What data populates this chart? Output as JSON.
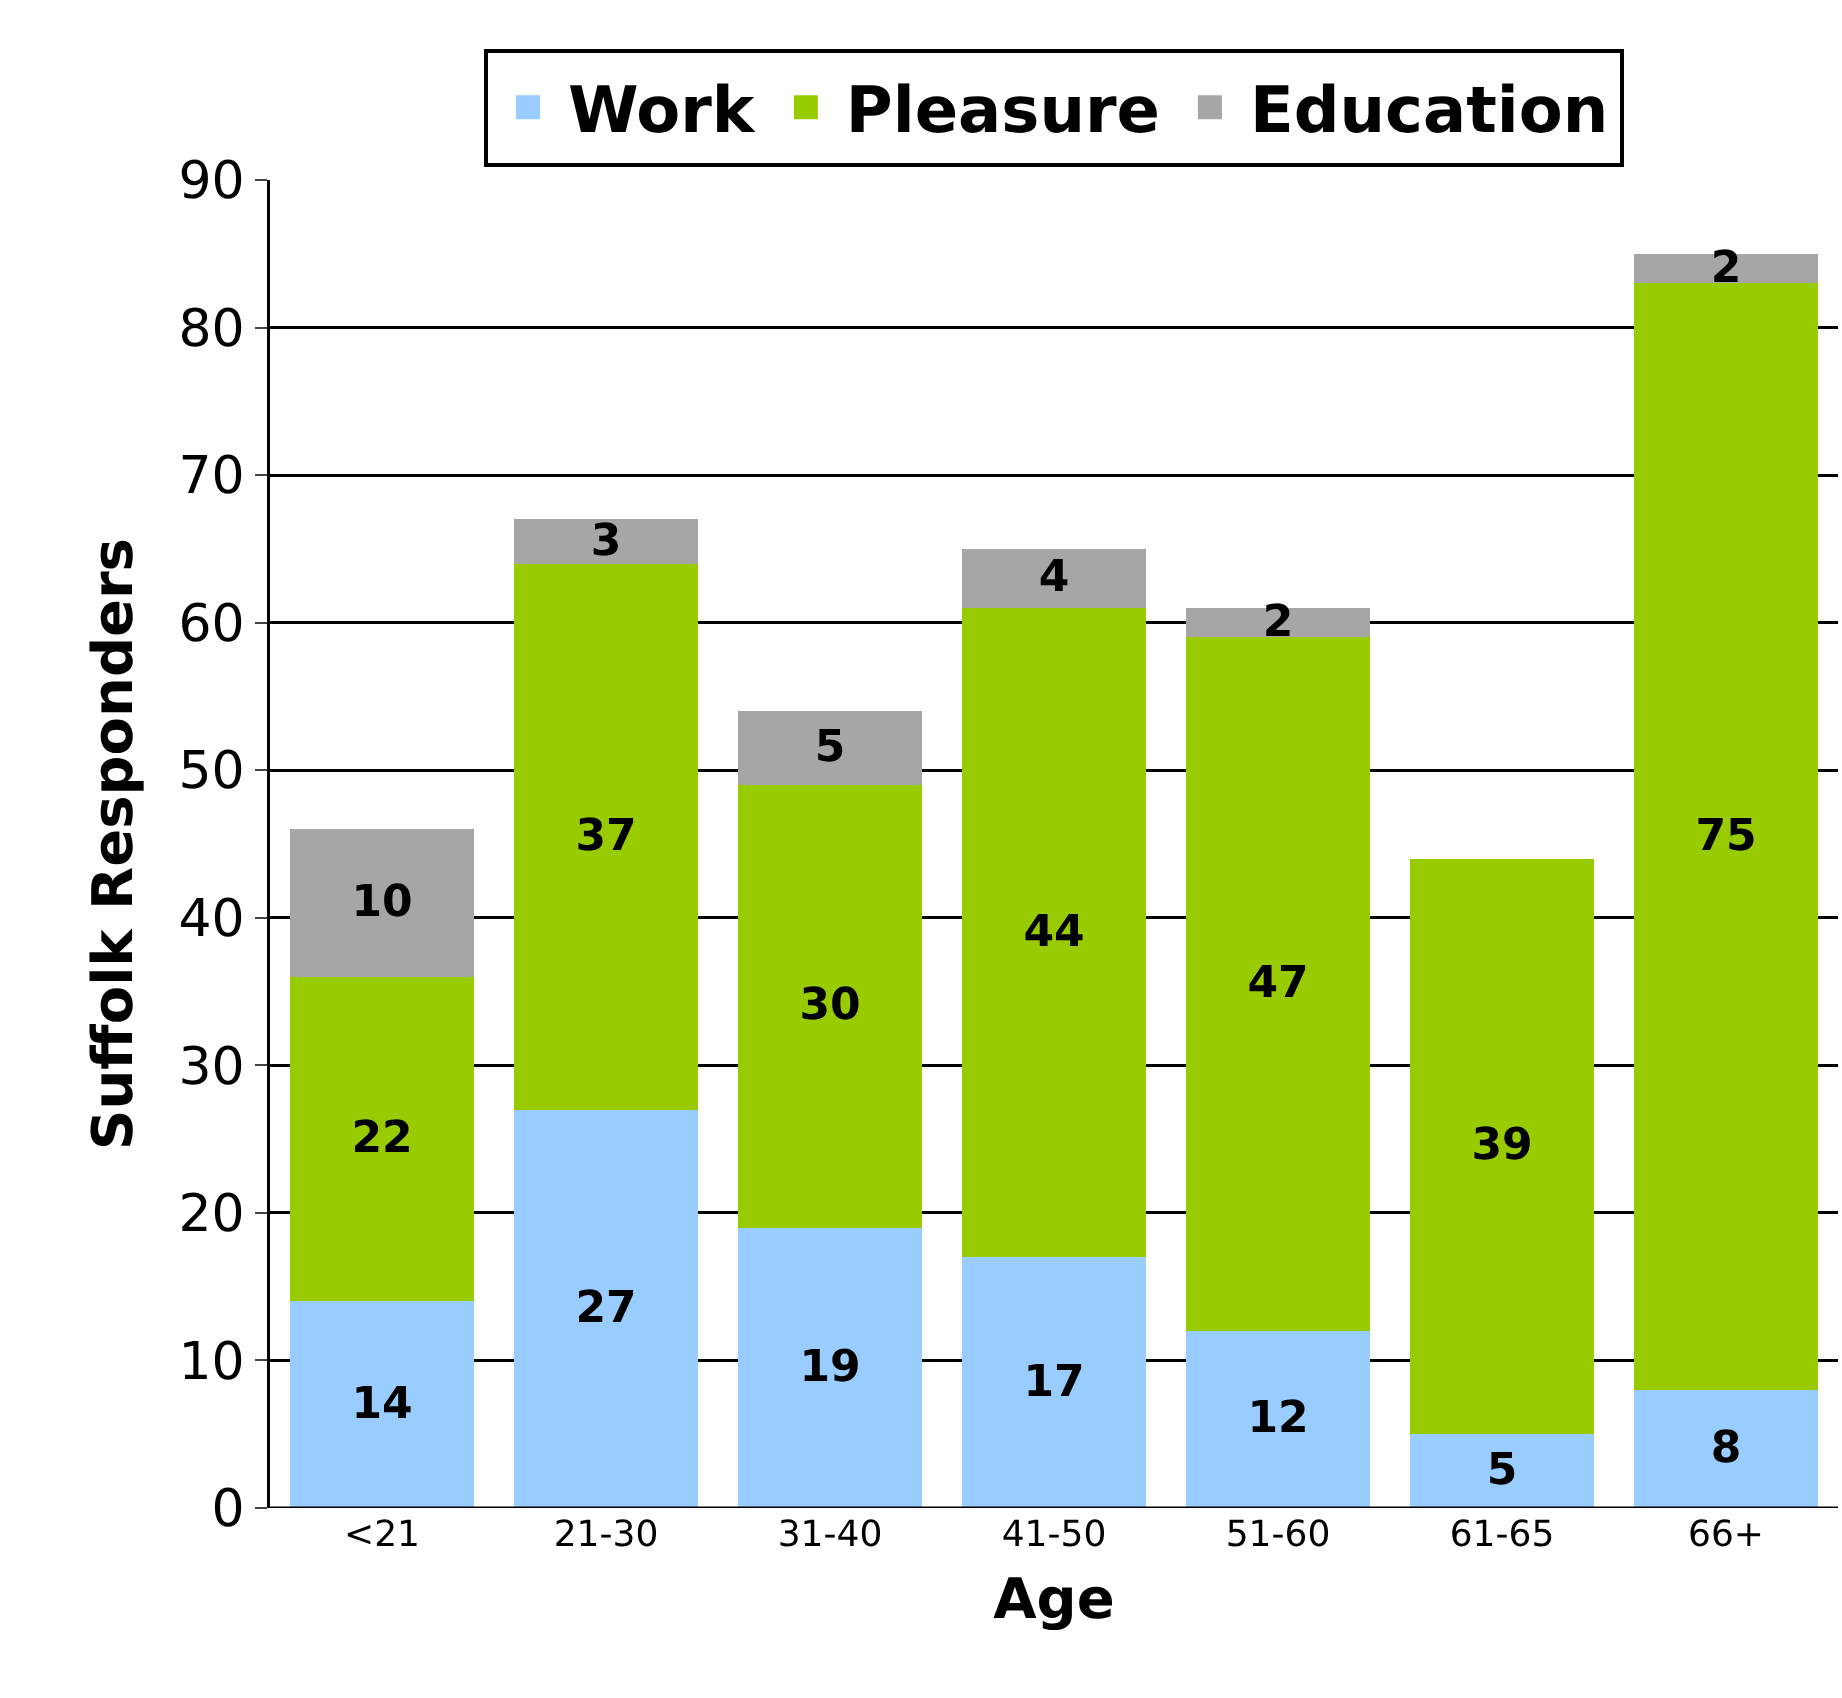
{
  "chart_data": {
    "type": "bar",
    "stacked": true,
    "xlabel": "Age",
    "ylabel": "Suffolk Responders",
    "categories": [
      "<21",
      "21-30",
      "31-40",
      "41-50",
      "51-60",
      "61-65",
      "66+"
    ],
    "series": [
      {
        "name": "Work",
        "color": "#99ccff",
        "values": [
          14,
          27,
          19,
          17,
          12,
          5,
          8
        ]
      },
      {
        "name": "Pleasure",
        "color": "#99cc00",
        "values": [
          22,
          37,
          30,
          44,
          47,
          39,
          75
        ]
      },
      {
        "name": "Education",
        "color": "#a6a6a6",
        "values": [
          10,
          3,
          5,
          4,
          2,
          null,
          2
        ]
      }
    ],
    "ylim": [
      0,
      90
    ],
    "yticks": [
      0,
      10,
      20,
      30,
      40,
      50,
      60,
      70,
      80,
      90
    ],
    "grid": "y",
    "legend": "top",
    "data_labels": true
  }
}
